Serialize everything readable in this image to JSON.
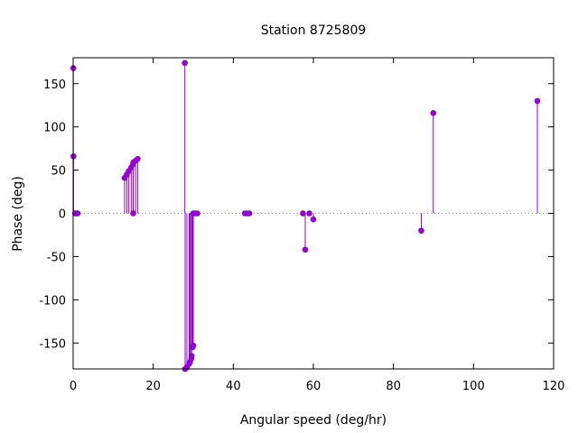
{
  "chart_data": {
    "type": "stem",
    "title": "Station 8725809",
    "xlabel": "Angular speed (deg/hr)",
    "ylabel": "Phase (deg)",
    "xlim": [
      0,
      120
    ],
    "ylim": [
      -180,
      180
    ],
    "xticks": [
      0,
      20,
      40,
      60,
      80,
      100,
      120
    ],
    "yticks": [
      -150,
      -100,
      -50,
      0,
      50,
      100,
      150
    ],
    "xtick_labels": [
      "0",
      "20",
      "40",
      "60",
      "80",
      "100",
      "120"
    ],
    "ytick_labels": [
      "-150",
      "-100",
      "-50",
      "0",
      "50",
      "100",
      "150"
    ],
    "zero_line": "dotted",
    "grid": false,
    "color": "#9400d3",
    "series": [
      {
        "points": [
          [
            0.04,
            168
          ],
          [
            0.08,
            66
          ],
          [
            0.5,
            0
          ],
          [
            0.55,
            0
          ],
          [
            1.0,
            0
          ],
          [
            1.1,
            0
          ],
          [
            12.85,
            41
          ],
          [
            13.4,
            45
          ],
          [
            13.9,
            49
          ],
          [
            14.5,
            53
          ],
          [
            14.96,
            57
          ],
          [
            15.0,
            0
          ],
          [
            15.04,
            59
          ],
          [
            15.6,
            61
          ],
          [
            16.1,
            63
          ],
          [
            27.9,
            174
          ],
          [
            27.97,
            -180
          ],
          [
            28.4,
            -178
          ],
          [
            28.98,
            -174
          ],
          [
            29.2,
            -172
          ],
          [
            29.5,
            -168
          ],
          [
            29.6,
            -165
          ],
          [
            29.8,
            -155
          ],
          [
            30.0,
            -153
          ],
          [
            30.0,
            0
          ],
          [
            30.6,
            0
          ],
          [
            31.0,
            0
          ],
          [
            42.9,
            0
          ],
          [
            43.5,
            0
          ],
          [
            44.0,
            0
          ],
          [
            57.4,
            0
          ],
          [
            57.97,
            -42
          ],
          [
            58.98,
            0
          ],
          [
            60.0,
            -7
          ],
          [
            86.95,
            -20
          ],
          [
            89.95,
            116
          ],
          [
            115.94,
            130
          ]
        ]
      }
    ]
  }
}
